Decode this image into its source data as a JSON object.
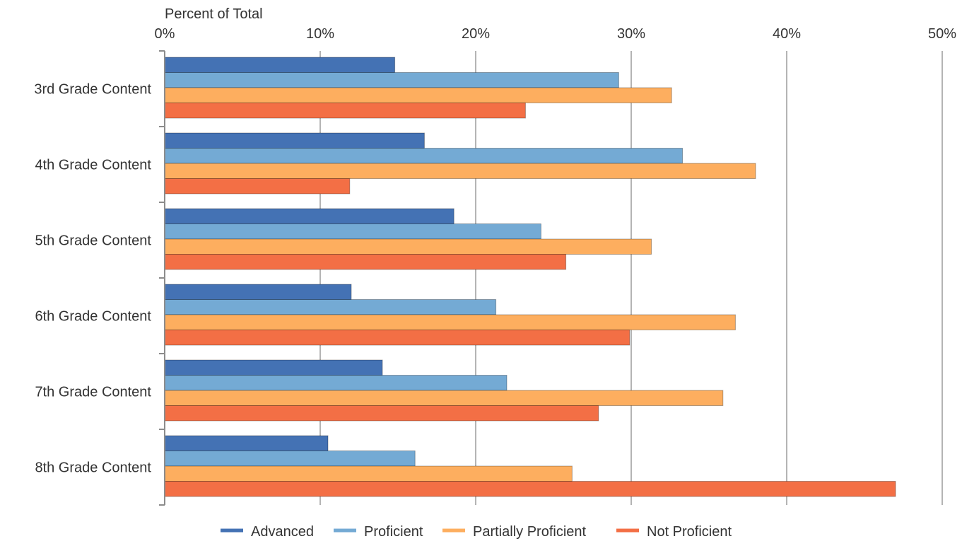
{
  "chart_data": {
    "type": "bar",
    "orientation": "horizontal",
    "title": "",
    "xlabel": "Percent of Total",
    "ylabel": "",
    "xlim": [
      0,
      50
    ],
    "x_ticks": [
      "0%",
      "10%",
      "20%",
      "30%",
      "40%",
      "50%"
    ],
    "x_axis_position": "top",
    "grid": true,
    "legend_position": "bottom",
    "categories": [
      "3rd Grade Content",
      "4th Grade Content",
      "5th Grade Content",
      "6th Grade Content",
      "7th Grade Content",
      "8th Grade Content"
    ],
    "series": [
      {
        "name": "Advanced",
        "color": "#4472b4",
        "values": [
          14.8,
          16.7,
          18.6,
          12.0,
          14.0,
          10.5
        ]
      },
      {
        "name": "Proficient",
        "color": "#74aad4",
        "values": [
          29.2,
          33.3,
          24.2,
          21.3,
          22.0,
          16.1
        ]
      },
      {
        "name": "Partially Proficient",
        "color": "#fdae5f",
        "values": [
          32.6,
          38.0,
          31.3,
          36.7,
          35.9,
          26.2
        ]
      },
      {
        "name": "Not Proficient",
        "color": "#f36f45",
        "values": [
          23.2,
          11.9,
          25.8,
          29.9,
          27.9,
          47.0
        ]
      }
    ]
  }
}
